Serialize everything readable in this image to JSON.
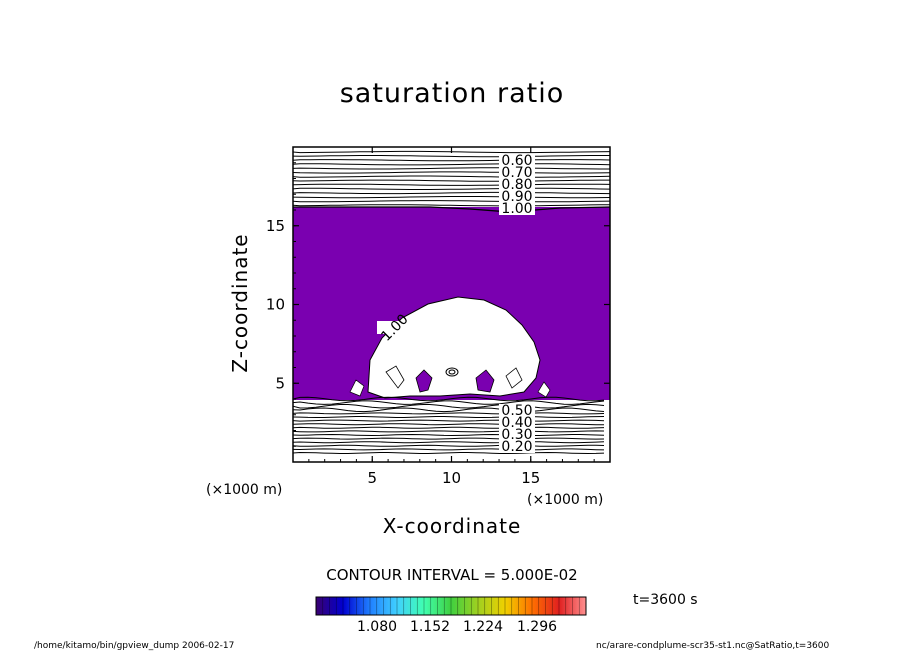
{
  "chart_data": {
    "type": "heatmap",
    "title": "saturation ratio",
    "xlabel": "X-coordinate",
    "ylabel": "Z-coordinate",
    "x_unit_label": "(×1000 m)",
    "z_unit_label": "(×1000 m)",
    "xlim": [
      0,
      20
    ],
    "ylim": [
      0,
      20
    ],
    "x_ticks": [
      "5",
      "10",
      "15"
    ],
    "y_ticks": [
      "5",
      "10",
      "15"
    ],
    "x_tick_values": [
      5,
      10,
      15
    ],
    "y_tick_values": [
      5,
      10,
      15
    ],
    "contour_interval": "CONTOUR INTERVAL = 5.000E-02",
    "contour_labels_upper": [
      "0.60",
      "0.70",
      "0.80",
      "0.90",
      "1.00"
    ],
    "contour_labels_lower": [
      "0.50",
      "0.40",
      "0.30",
      "0.20"
    ],
    "plume_label": "1.00",
    "shaded_region_level": 1.0,
    "colorbar": {
      "tick_labels": [
        "1.080",
        "1.152",
        "1.224",
        "1.296"
      ],
      "colors": [
        "#3a0070",
        "#0000d0",
        "#2080ff",
        "#40d0ff",
        "#40ffb0",
        "#40d040",
        "#a0d020",
        "#f0d000",
        "#ff7000",
        "#e02020",
        "#ff9090"
      ]
    },
    "fill_color": "#7a00b0",
    "time": "t=3600 s"
  },
  "footer": {
    "left": "/home/kitamo/bin/gpview_dump  2006-02-17",
    "right": "nc/arare-condplume-scr35-st1.nc@SatRatio,t=3600"
  }
}
